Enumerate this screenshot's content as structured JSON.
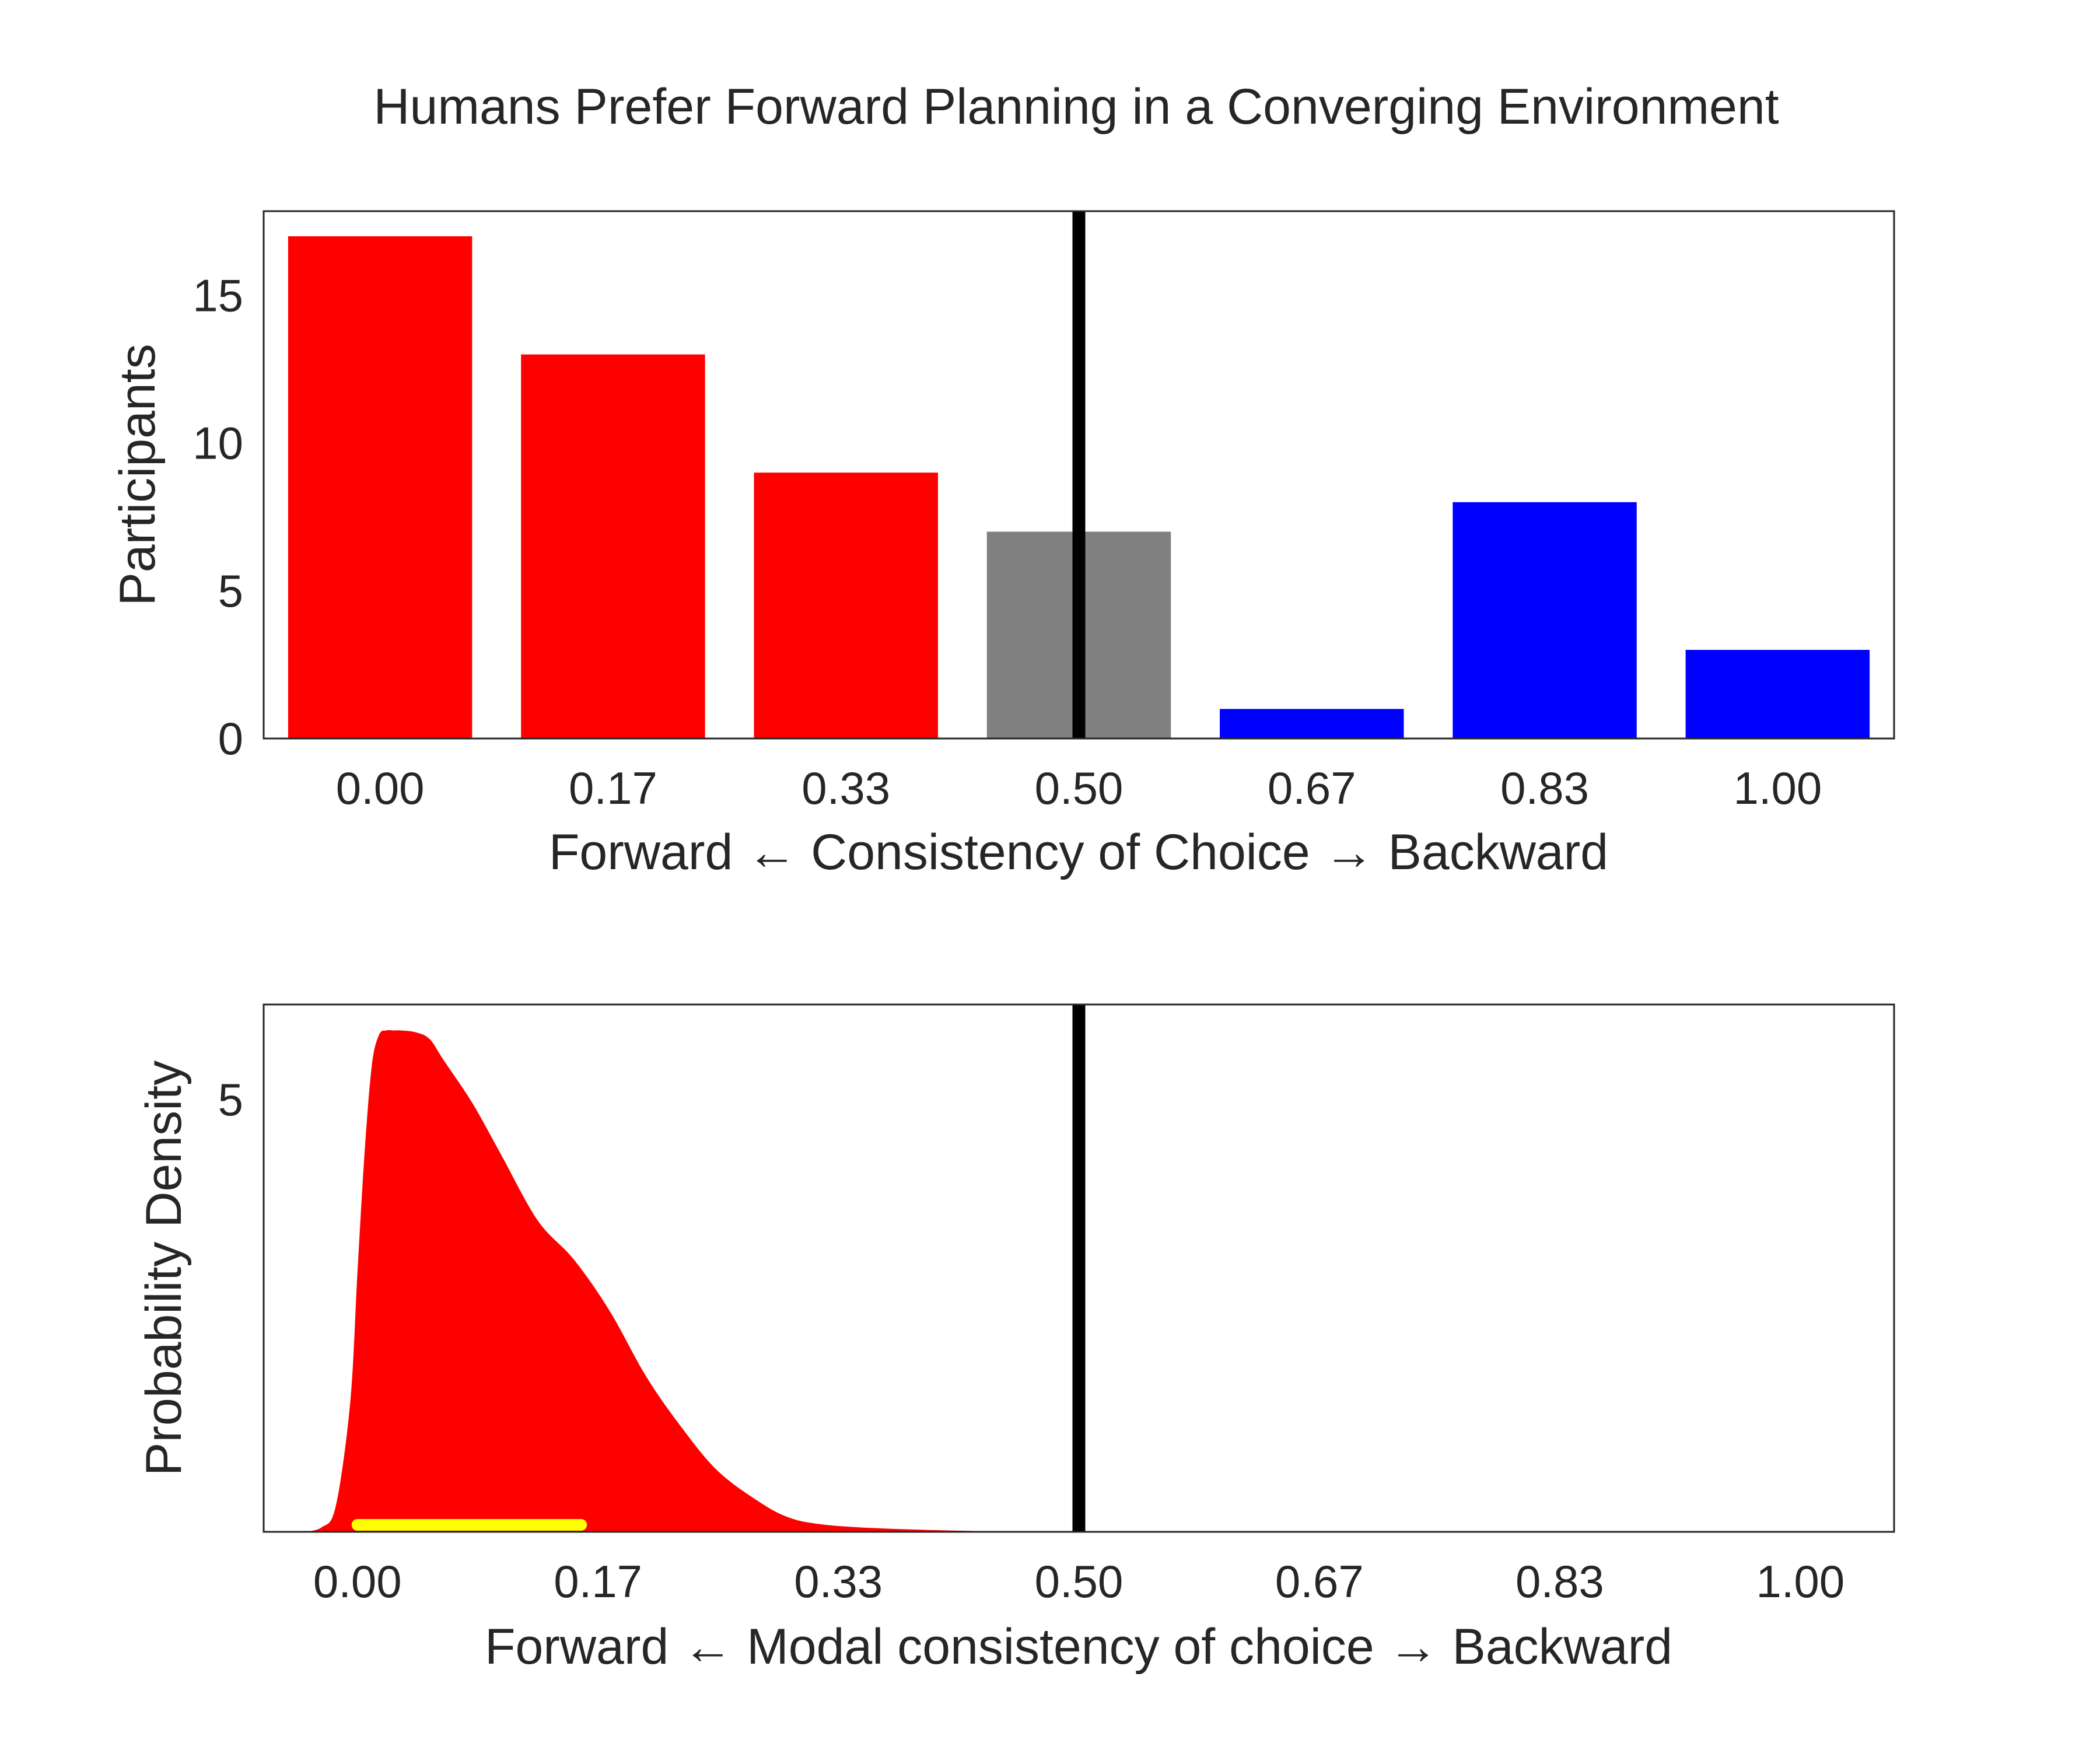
{
  "figure_title": "Humans Prefer Forward Planning in a Converging Environment",
  "colors": {
    "forward": "#ff0000",
    "neutral": "#808080",
    "backward": "#0000ff",
    "marker_line": "#000000",
    "interval_bar": "#ffff00"
  },
  "chart_data": [
    {
      "type": "bar",
      "xlabel": "Forward ← Consistency of Choice → Backward",
      "ylabel": "Participants",
      "categories": [
        "0.00",
        "0.17",
        "0.33",
        "0.50",
        "0.67",
        "0.83",
        "1.00"
      ],
      "values": [
        17,
        13,
        9,
        7,
        1,
        8,
        3
      ],
      "bar_colors": [
        "#ff0000",
        "#ff0000",
        "#ff0000",
        "#808080",
        "#0000ff",
        "#0000ff",
        "#0000ff"
      ],
      "ylim": [
        0,
        17.85
      ],
      "yticks": [
        0,
        5,
        10,
        15
      ],
      "reference_line_category_index": 3,
      "grid": false
    },
    {
      "type": "area",
      "xlabel": "Forward ← Modal consistency of choice → Backward",
      "ylabel": "Probability Density",
      "xlim": [
        -0.065,
        1.065
      ],
      "ylim": [
        0,
        6.1
      ],
      "xticks": [
        0.0,
        0.1667,
        0.3333,
        0.5,
        0.6667,
        0.8333,
        1.0
      ],
      "xtick_labels": [
        "0.00",
        "0.17",
        "0.33",
        "0.50",
        "0.67",
        "0.83",
        "1.00"
      ],
      "yticks": [
        5
      ],
      "ytick_labels": [
        "5"
      ],
      "reference_line_x": 0.5,
      "interval": [
        0.0,
        0.155
      ],
      "x": [
        -0.04,
        -0.025,
        -0.015,
        -0.005,
        0.0,
        0.005,
        0.01,
        0.015,
        0.02,
        0.025,
        0.03,
        0.04,
        0.05,
        0.06,
        0.08,
        0.1,
        0.125,
        0.15,
        0.175,
        0.2,
        0.225,
        0.25,
        0.28,
        0.3,
        0.32,
        0.35,
        0.4,
        0.45,
        0.5
      ],
      "values": [
        0.0,
        0.05,
        0.3,
        1.5,
        3.0,
        4.4,
        5.4,
        5.75,
        5.8,
        5.8,
        5.8,
        5.78,
        5.7,
        5.45,
        4.95,
        4.35,
        3.6,
        3.15,
        2.55,
        1.8,
        1.2,
        0.7,
        0.33,
        0.16,
        0.09,
        0.05,
        0.02,
        0.005,
        0.0
      ],
      "grid": false
    }
  ]
}
